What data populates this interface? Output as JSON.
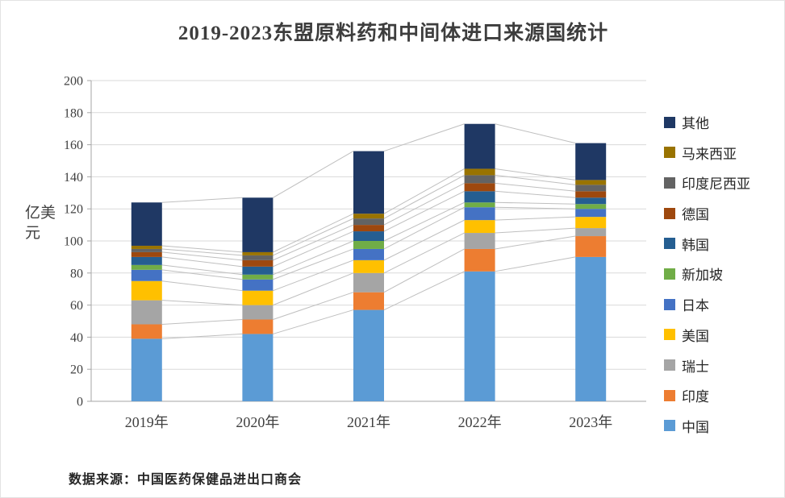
{
  "chart": {
    "title": "2019-2023东盟原料药和中间体进口来源国统计",
    "ylabel": "亿美元",
    "source": "数据来源：中国医药保健品进出口商会"
  },
  "chart_data": {
    "type": "bar",
    "stacked": true,
    "title": "2019-2023东盟原料药和中间体进口来源国统计",
    "ylabel": "亿美元",
    "categories": [
      "2019年",
      "2020年",
      "2021年",
      "2022年",
      "2023年"
    ],
    "series": [
      {
        "name": "中国",
        "color": "#5B9BD5",
        "values": [
          39,
          42,
          57,
          81,
          90
        ]
      },
      {
        "name": "印度",
        "color": "#ED7D31",
        "values": [
          9,
          9,
          11,
          14,
          13
        ]
      },
      {
        "name": "瑞士",
        "color": "#A5A5A5",
        "values": [
          15,
          9,
          12,
          10,
          5
        ]
      },
      {
        "name": "美国",
        "color": "#FFC000",
        "values": [
          12,
          9,
          8,
          8,
          7
        ]
      },
      {
        "name": "日本",
        "color": "#4472C4",
        "values": [
          7,
          7,
          7,
          8,
          5
        ]
      },
      {
        "name": "新加坡",
        "color": "#70AD47",
        "values": [
          3,
          3,
          5,
          3,
          3
        ]
      },
      {
        "name": "韩国",
        "color": "#255E91",
        "values": [
          5,
          5,
          6,
          7,
          4
        ]
      },
      {
        "name": "德国",
        "color": "#9E480E",
        "values": [
          3,
          4,
          4,
          5,
          4
        ]
      },
      {
        "name": "印度尼西亚",
        "color": "#636363",
        "values": [
          2,
          3,
          4,
          5,
          4
        ]
      },
      {
        "name": "马来西亚",
        "color": "#997300",
        "values": [
          2,
          2,
          3,
          4,
          3
        ]
      },
      {
        "name": "其他",
        "color": "#1F3864",
        "values": [
          27,
          34,
          39,
          28,
          23
        ]
      }
    ],
    "ylim": [
      0,
      200
    ],
    "ytick_step": 20,
    "grid": true,
    "legend_position": "right",
    "series_lines": true,
    "gridline_color": "#D9D9D9",
    "series_line_color": "#BFBFBF",
    "axis_color": "#A6A6A6"
  }
}
